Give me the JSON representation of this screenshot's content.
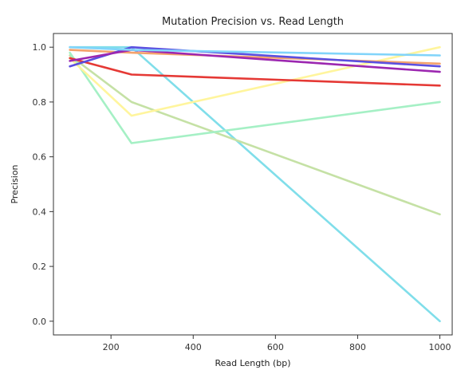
{
  "chart_data": {
    "type": "line",
    "title": "Mutation Precision vs. Read Length",
    "xlabel": "Read Length (bp)",
    "ylabel": "Precision",
    "xlim": [
      60,
      1030
    ],
    "ylim": [
      -0.05,
      1.05
    ],
    "x_ticks": [
      200,
      400,
      600,
      800,
      1000
    ],
    "y_ticks": [
      0.0,
      0.2,
      0.4,
      0.6,
      0.8,
      1.0
    ],
    "grid": false,
    "legend": "none",
    "x": [
      100,
      250,
      1000
    ],
    "series": [
      {
        "color": "#80deea",
        "values": [
          1.0,
          1.0,
          0.0
        ]
      },
      {
        "color": "#c5e1a5",
        "values": [
          0.97,
          0.8,
          0.39
        ]
      },
      {
        "color": "#a5f0c5",
        "values": [
          0.98,
          0.65,
          0.8
        ]
      },
      {
        "color": "#fff59d",
        "values": [
          0.96,
          0.75,
          1.0
        ]
      },
      {
        "color": "#f4a26c",
        "values": [
          0.99,
          0.98,
          0.94
        ]
      },
      {
        "color": "#e53935",
        "values": [
          0.96,
          0.9,
          0.86
        ]
      },
      {
        "color": "#5b4fe0",
        "values": [
          0.93,
          1.0,
          0.93
        ]
      },
      {
        "color": "#9c27b0",
        "values": [
          0.95,
          0.99,
          0.91
        ]
      },
      {
        "color": "#81d4fa",
        "values": [
          1.0,
          0.99,
          0.97
        ]
      }
    ]
  }
}
